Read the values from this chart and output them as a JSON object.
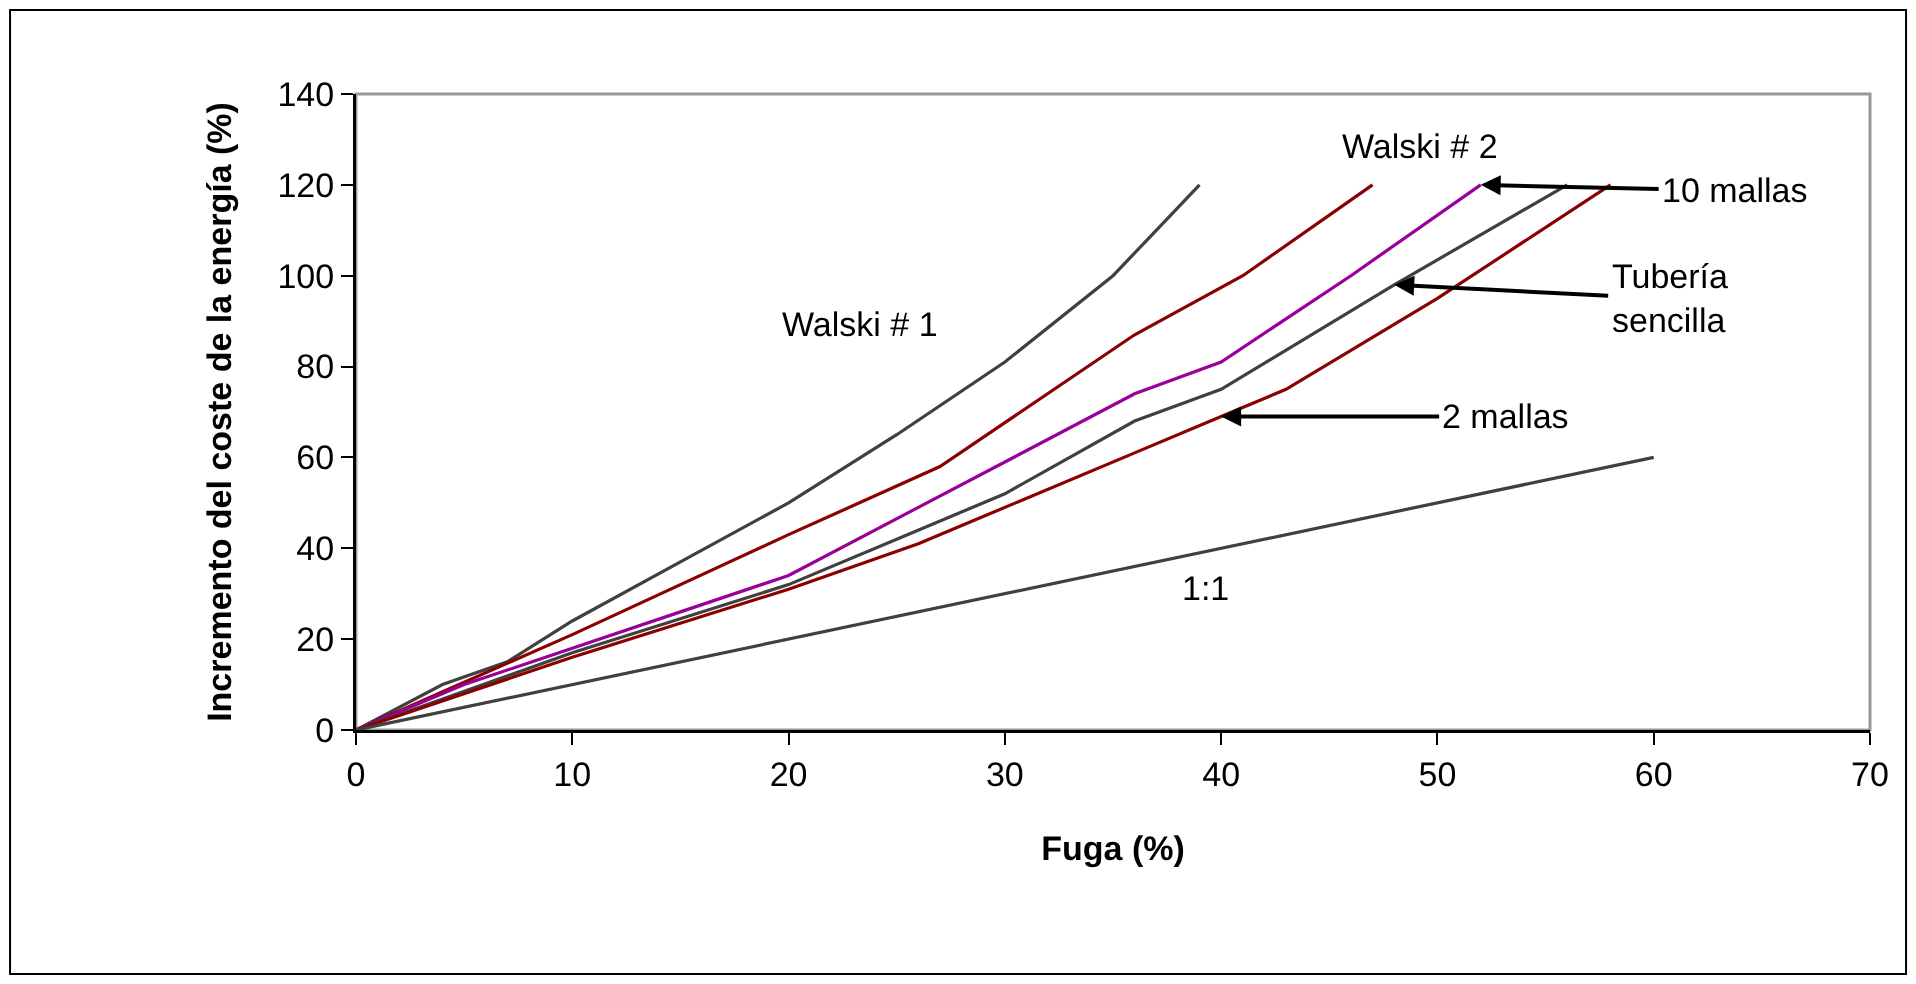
{
  "chart_data": {
    "type": "line",
    "xlabel": "Fuga (%)",
    "ylabel": "Incremento del coste de la energía (%)",
    "xlim": [
      0,
      70
    ],
    "xticks": [
      0,
      10,
      20,
      30,
      40,
      50,
      60,
      70
    ],
    "ylim": [
      0,
      140
    ],
    "yticks": [
      0,
      20,
      40,
      60,
      80,
      100,
      120,
      140
    ],
    "grid": false,
    "marker": "none",
    "line_style": "solid",
    "series": [
      {
        "name": "Walski # 1",
        "color": "#404040",
        "x": [
          0,
          4,
          7,
          10,
          15,
          20,
          25,
          30,
          35,
          37,
          39
        ],
        "values": [
          0,
          10,
          15,
          24,
          37,
          50,
          65,
          81,
          100,
          110,
          120
        ]
      },
      {
        "name": "Walski # 2",
        "color": "#8b0000",
        "x": [
          0,
          10,
          20,
          27,
          36,
          41,
          47
        ],
        "values": [
          0,
          21,
          43,
          58,
          87,
          100,
          120
        ]
      },
      {
        "color": "#990099",
        "x": [
          0,
          5,
          10,
          15,
          20,
          26,
          30,
          36,
          40,
          46,
          52
        ],
        "values": [
          0,
          10,
          18,
          26,
          34,
          49,
          59,
          74,
          81,
          100,
          120
        ]
      },
      {
        "color": "#404040",
        "x": [
          0,
          10,
          20,
          25,
          30,
          36,
          40,
          48,
          56
        ],
        "values": [
          0,
          17,
          32,
          42,
          52,
          68,
          75,
          98,
          120
        ]
      },
      {
        "color": "#8b0000",
        "x": [
          0,
          10,
          20,
          26,
          36,
          40,
          43,
          50,
          58
        ],
        "values": [
          0,
          16,
          31,
          41,
          61,
          69,
          75,
          95,
          120
        ]
      },
      {
        "name": "1:1",
        "color": "#404040",
        "x": [
          0,
          60
        ],
        "values": [
          0,
          60
        ]
      }
    ],
    "annotations": [
      {
        "text": "10 mallas",
        "x": 52,
        "y": 120
      },
      {
        "text": "Tubería\nsencilla",
        "x": 48,
        "y": 98
      },
      {
        "text": "2 mallas",
        "x": 40,
        "y": 69
      }
    ]
  }
}
